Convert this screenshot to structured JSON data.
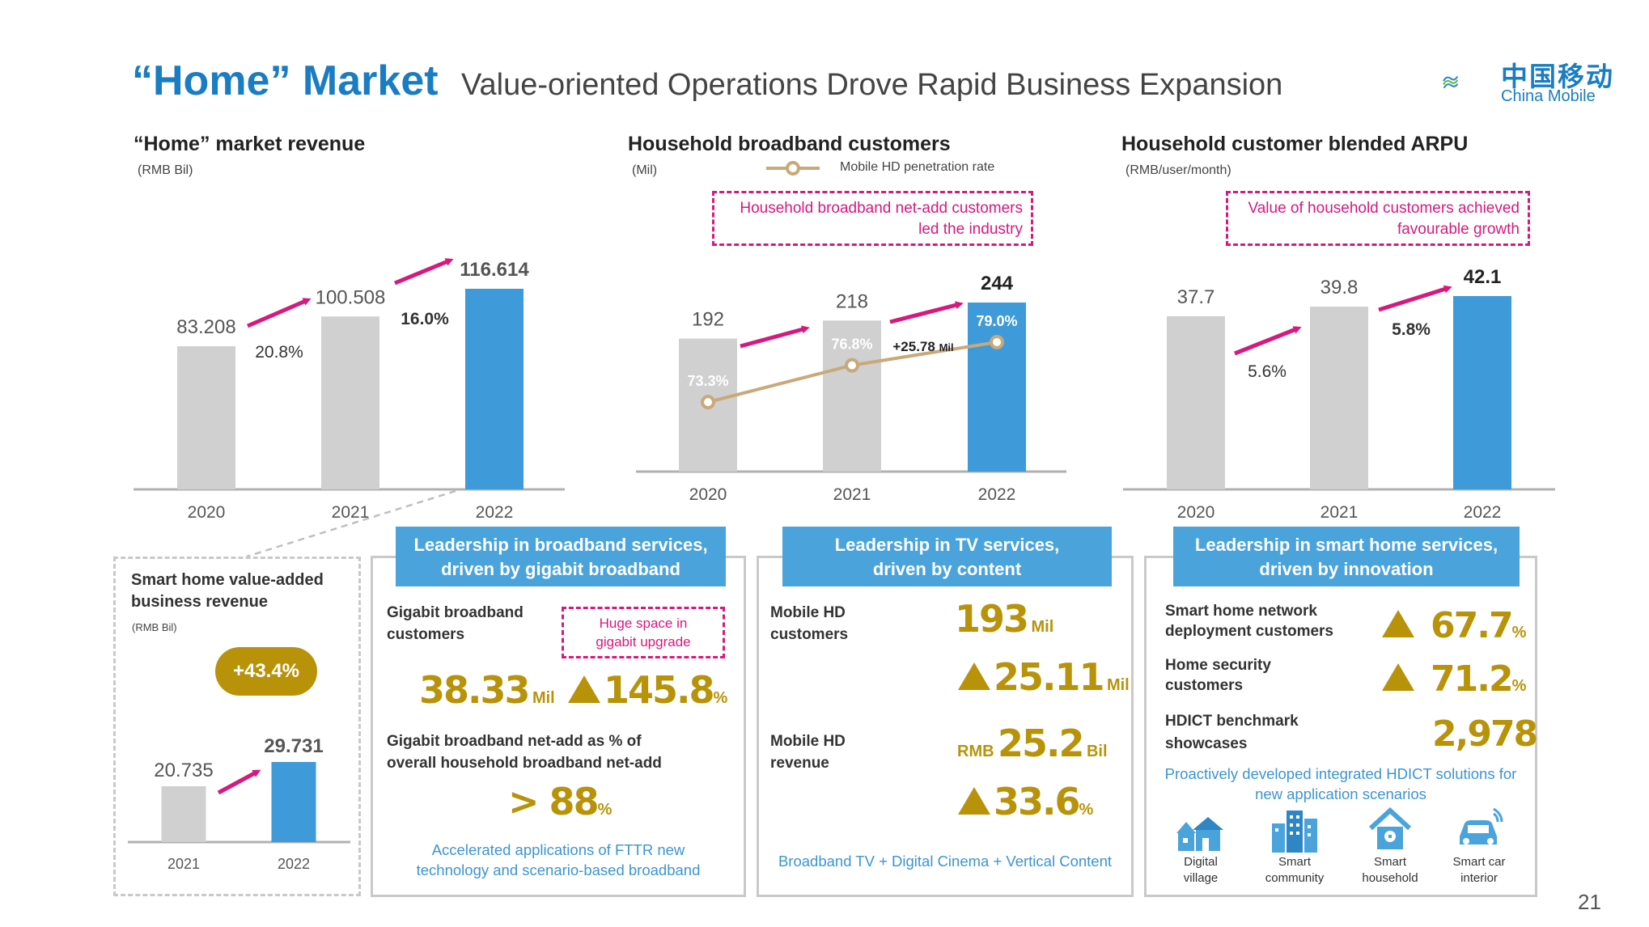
{
  "header": {
    "title_main": "“Home” Market",
    "title_sub": "Value-oriented Operations Drove Rapid Business Expansion",
    "logo_cn": "中国移动",
    "logo_en": "China Mobile",
    "logo_icon": "china-mobile-logo"
  },
  "page_number": "21",
  "chart_data": [
    {
      "type": "bar",
      "title": "“Home” market revenue",
      "unit": "(RMB Bil)",
      "categories": [
        "2020",
        "2021",
        "2022"
      ],
      "values": [
        83.208,
        100.508,
        116.614
      ],
      "value_labels": [
        "83.208",
        "100.508",
        "116.614"
      ],
      "growth_labels": [
        "20.8%",
        "16.0%"
      ],
      "colors": [
        "#d0d0d0",
        "#d0d0d0",
        "#3e9ad8"
      ],
      "ylim": [
        0,
        116.614
      ]
    },
    {
      "type": "bar",
      "title": "Household broadband customers",
      "unit": "(Mil)",
      "categories": [
        "2020",
        "2021",
        "2022"
      ],
      "values": [
        192,
        218,
        244
      ],
      "value_labels": [
        "192",
        "218",
        "244"
      ],
      "colors": [
        "#d0d0d0",
        "#d0d0d0",
        "#3e9ad8"
      ],
      "net_add_label": "+25.78",
      "net_add_unit": "Mil",
      "line_series": {
        "name": "Mobile HD penetration rate",
        "values": [
          73.3,
          76.8,
          79.0
        ],
        "labels": [
          "73.3%",
          "76.8%",
          "79.0%"
        ],
        "color": "#c8a97a"
      },
      "callout": [
        "Household broadband net-add customers",
        "led the industry"
      ],
      "ylim": [
        0,
        244
      ]
    },
    {
      "type": "bar",
      "title": "Household customer blended ARPU",
      "unit": "(RMB/user/month)",
      "categories": [
        "2020",
        "2021",
        "2022"
      ],
      "values": [
        37.7,
        39.8,
        42.1
      ],
      "value_labels": [
        "37.7",
        "39.8",
        "42.1"
      ],
      "growth_labels": [
        "5.6%",
        "5.8%"
      ],
      "colors": [
        "#d0d0d0",
        "#d0d0d0",
        "#3e9ad8"
      ],
      "callout": [
        "Value of household customers achieved",
        "favourable growth"
      ],
      "ylim": [
        0,
        42.1
      ]
    },
    {
      "type": "bar",
      "title": "Smart home value-added business revenue",
      "unit": "(RMB Bil)",
      "categories": [
        "2021",
        "2022"
      ],
      "values": [
        20.735,
        29.731
      ],
      "value_labels": [
        "20.735",
        "29.731"
      ],
      "growth_badge": "+43.4%",
      "colors": [
        "#d0d0d0",
        "#3e9ad8"
      ],
      "ylim": [
        0,
        29.731
      ]
    }
  ],
  "smart_home_card": {
    "title_line1": "Smart home value-added",
    "title_line2": "business revenue",
    "unit": "(RMB Bil)"
  },
  "broadband_panel": {
    "head_line1": "Leadership in broadband services,",
    "head_line2": "driven by gigabit broadband",
    "gigabit_label1": "Gigabit broadband",
    "gigabit_label2": "customers",
    "upgrade_note1": "Huge space in",
    "upgrade_note2": "gigabit upgrade",
    "gigabit_value": "38.33",
    "gigabit_unit": "Mil",
    "gigabit_growth": "145.8",
    "pct": "%",
    "netadd_label1": "Gigabit broadband net-add as % of",
    "netadd_label2": "overall household broadband net-add",
    "netadd_value": "> 88",
    "note1": "Accelerated applications of FTTR new",
    "note2": "technology and scenario-based broadband"
  },
  "tv_panel": {
    "head_line1": "Leadership in TV services,",
    "head_line2": "driven by content",
    "cust_label1": "Mobile HD",
    "cust_label2": "customers",
    "cust_value": "193",
    "cust_unit": "Mil",
    "cust_growth": "25.11",
    "cust_growth_unit": "Mil",
    "rev_label1": "Mobile HD",
    "rev_label2": "revenue",
    "rev_prefix": "RMB",
    "rev_value": "25.2",
    "rev_unit": "Bil",
    "rev_growth": "33.6",
    "pct": "%",
    "note": "Broadband TV + Digital Cinema + Vertical Content"
  },
  "smart_panel": {
    "head_line1": "Leadership in smart home services,",
    "head_line2": "driven by innovation",
    "net_label1": "Smart home network",
    "net_label2": "deployment customers",
    "net_growth": "67.7",
    "sec_label1": "Home security",
    "sec_label2": "customers",
    "sec_growth": "71.2",
    "hdict_label1": "HDICT benchmark",
    "hdict_label2": "showcases",
    "hdict_value": "2,978",
    "pct": "%",
    "note1": "Proactively developed integrated HDICT solutions for",
    "note2": "new application scenarios",
    "icons": [
      {
        "icon": "digital-village-icon",
        "line1": "Digital",
        "line2": "village"
      },
      {
        "icon": "smart-community-icon",
        "line1": "Smart",
        "line2": "community"
      },
      {
        "icon": "smart-household-icon",
        "line1": "Smart",
        "line2": "household"
      },
      {
        "icon": "smart-car-icon",
        "line1": "Smart car",
        "line2": "interior"
      }
    ]
  }
}
